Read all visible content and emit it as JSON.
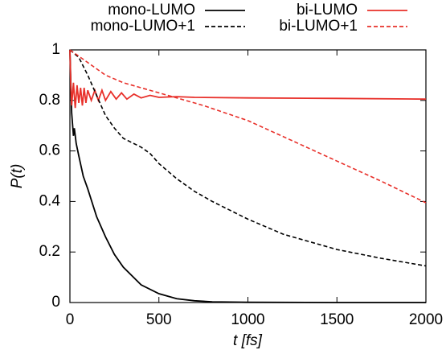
{
  "chart_data": {
    "type": "line",
    "xlabel": "t [fs]",
    "ylabel": "P(t)",
    "xlim": [
      0,
      2000
    ],
    "xticks": [
      0,
      500,
      1000,
      1500,
      2000
    ],
    "ylim": [
      0,
      1
    ],
    "yticks": [
      0,
      0.2,
      0.4,
      0.6,
      0.8,
      1
    ],
    "series": [
      {
        "name": "mono-LUMO",
        "color": "#000000",
        "dashed": false,
        "x": [
          0,
          10,
          20,
          25,
          35,
          50,
          75,
          100,
          150,
          200,
          250,
          300,
          400,
          500,
          600,
          700,
          800,
          1000,
          1500,
          2000
        ],
        "values": [
          1,
          0.75,
          0.66,
          0.69,
          0.63,
          0.58,
          0.5,
          0.45,
          0.34,
          0.26,
          0.19,
          0.14,
          0.07,
          0.035,
          0.015,
          0.007,
          0.003,
          0.001,
          0,
          0
        ]
      },
      {
        "name": "bi-LUMO",
        "color": "#e8302a",
        "dashed": false,
        "x": [
          0,
          5,
          10,
          20,
          30,
          40,
          50,
          60,
          70,
          80,
          90,
          100,
          120,
          140,
          160,
          180,
          200,
          230,
          260,
          290,
          320,
          360,
          400,
          450,
          500,
          600,
          700,
          1000,
          1500,
          2000
        ],
        "values": [
          1,
          0.86,
          0.78,
          0.87,
          0.77,
          0.86,
          0.79,
          0.85,
          0.78,
          0.85,
          0.79,
          0.84,
          0.8,
          0.84,
          0.8,
          0.84,
          0.8,
          0.835,
          0.805,
          0.83,
          0.805,
          0.825,
          0.81,
          0.82,
          0.812,
          0.815,
          0.812,
          0.81,
          0.808,
          0.805
        ]
      },
      {
        "name": "mono-LUMO+1",
        "color": "#000000",
        "dashed": true,
        "x": [
          0,
          50,
          100,
          150,
          200,
          250,
          300,
          400,
          450,
          500,
          600,
          700,
          800,
          1000,
          1200,
          1500,
          1750,
          2000
        ],
        "values": [
          1,
          0.97,
          0.9,
          0.82,
          0.74,
          0.69,
          0.65,
          0.615,
          0.59,
          0.55,
          0.49,
          0.44,
          0.4,
          0.33,
          0.27,
          0.21,
          0.175,
          0.145
        ]
      },
      {
        "name": "bi-LUMO+1",
        "color": "#e8302a",
        "dashed": true,
        "x": [
          0,
          100,
          200,
          300,
          400,
          500,
          750,
          1000,
          1250,
          1500,
          1750,
          2000
        ],
        "values": [
          1,
          0.95,
          0.9,
          0.87,
          0.85,
          0.83,
          0.78,
          0.72,
          0.64,
          0.56,
          0.48,
          0.395
        ]
      }
    ]
  }
}
